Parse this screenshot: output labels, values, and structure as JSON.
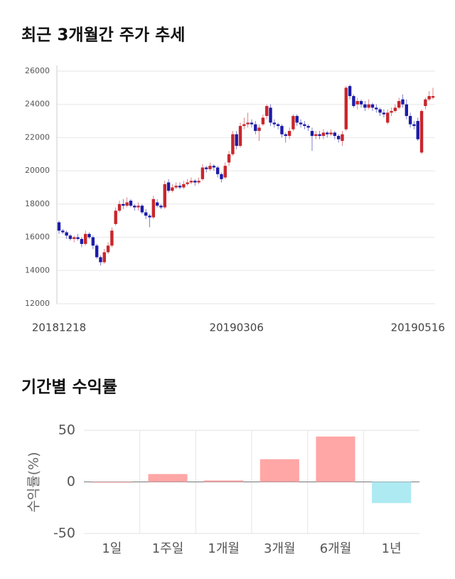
{
  "chart_data": [
    {
      "type": "candlestick",
      "title": "최근 3개월간 주가 추세",
      "categories": [
        "20181218",
        null,
        null,
        null,
        null,
        null,
        null,
        null,
        null,
        null,
        null,
        null,
        null,
        null,
        null,
        null,
        null,
        null,
        null,
        null,
        null,
        null,
        null,
        null,
        null,
        null,
        null,
        null,
        null,
        null,
        null,
        null,
        null,
        null,
        null,
        null,
        null,
        null,
        null,
        null,
        null,
        null,
        null,
        null,
        null,
        null,
        null,
        "20190306",
        null,
        null,
        null,
        null,
        null,
        null,
        null,
        null,
        null,
        null,
        null,
        null,
        null,
        null,
        null,
        null,
        null,
        null,
        null,
        null,
        null,
        null,
        null,
        null,
        null,
        null,
        null,
        null,
        null,
        null,
        null,
        null,
        null,
        null,
        null,
        null,
        null,
        null,
        null,
        null,
        null,
        null,
        null,
        null,
        null,
        null,
        null,
        "20190516",
        null,
        null,
        null,
        null
      ],
      "open": [
        16900,
        16400,
        16300,
        16100,
        15900,
        16000,
        15900,
        15600,
        16200,
        16000,
        15500,
        14800,
        14500,
        15100,
        15500,
        16800,
        17600,
        18000,
        17900,
        18200,
        17900,
        17800,
        17900,
        17500,
        17300,
        17200,
        18100,
        17900,
        17800,
        19300,
        18800,
        19000,
        19100,
        19000,
        19200,
        19300,
        19400,
        19300,
        19500,
        20200,
        20100,
        20300,
        20200,
        19800,
        19600,
        20500,
        21000,
        22200,
        21500,
        22700,
        22800,
        22900,
        22800,
        22400,
        22800,
        23300,
        23800,
        22900,
        22800,
        22700,
        22200,
        22100,
        22500,
        23300,
        22900,
        22800,
        22700,
        22400,
        22100,
        22200,
        22100,
        22300,
        22200,
        22300,
        22100,
        21800,
        22500,
        25100,
        24500,
        24000,
        24200,
        24000,
        23800,
        24000,
        23800,
        23700,
        23500,
        22900,
        23500,
        23600,
        23800,
        24300,
        24000,
        23300,
        22800,
        23000,
        21100,
        23900,
        24300,
        24400
      ],
      "high": [
        17000,
        16500,
        16400,
        16200,
        16100,
        16200,
        16000,
        16400,
        16300,
        16100,
        15600,
        14900,
        15300,
        15700,
        16600,
        17800,
        18200,
        18300,
        18400,
        18300,
        18000,
        18100,
        18000,
        17700,
        17400,
        18500,
        18300,
        18000,
        19400,
        19500,
        19200,
        19300,
        19300,
        19400,
        19500,
        19600,
        19500,
        19600,
        20400,
        20300,
        20500,
        20400,
        20300,
        19900,
        20500,
        21200,
        22400,
        22400,
        22900,
        23200,
        23500,
        23100,
        23000,
        22800,
        23400,
        24000,
        24000,
        23100,
        22900,
        22800,
        22300,
        22600,
        23400,
        23400,
        23100,
        23000,
        22800,
        22600,
        22400,
        22400,
        22500,
        22400,
        22500,
        22400,
        22200,
        22400,
        25100,
        25200,
        24600,
        24400,
        24300,
        24200,
        24300,
        24100,
        24000,
        23800,
        23700,
        23700,
        23800,
        24000,
        24400,
        24600,
        24300,
        23500,
        23000,
        23200,
        23700,
        24400,
        24800,
        25000
      ],
      "low": [
        16200,
        16200,
        15900,
        15800,
        15700,
        15800,
        15400,
        15500,
        15900,
        15300,
        14700,
        14300,
        14400,
        15000,
        15400,
        16700,
        17500,
        17700,
        17800,
        17800,
        17600,
        17600,
        17400,
        17100,
        16600,
        17100,
        17800,
        17700,
        17700,
        18700,
        18700,
        18900,
        18900,
        18900,
        19100,
        19200,
        19100,
        19200,
        19400,
        19900,
        20000,
        20000,
        19600,
        19300,
        19500,
        20300,
        20900,
        21300,
        21400,
        22500,
        22600,
        22600,
        22200,
        21800,
        22700,
        23100,
        22700,
        22600,
        22500,
        22000,
        21700,
        21900,
        22400,
        22700,
        22600,
        22500,
        22400,
        21200,
        21900,
        21900,
        21900,
        22000,
        22100,
        21900,
        21700,
        21500,
        22400,
        24300,
        23800,
        23700,
        23800,
        23600,
        23700,
        23600,
        23500,
        23300,
        23200,
        22800,
        23300,
        23500,
        23700,
        23800,
        23100,
        22600,
        22500,
        21800,
        21000,
        23700,
        24200,
        24300
      ],
      "close": [
        16400,
        16300,
        16100,
        15900,
        16000,
        15900,
        15600,
        16200,
        16000,
        15500,
        14800,
        14500,
        15100,
        15500,
        16400,
        17600,
        18000,
        17900,
        18100,
        17900,
        17800,
        17900,
        17500,
        17300,
        17200,
        18300,
        17900,
        17800,
        19200,
        18800,
        19000,
        19100,
        19000,
        19200,
        19300,
        19400,
        19300,
        19400,
        20200,
        20100,
        20300,
        20200,
        19800,
        19500,
        20300,
        21000,
        22200,
        21500,
        22700,
        22800,
        22900,
        22800,
        22400,
        22600,
        23200,
        23900,
        22900,
        22800,
        22700,
        22200,
        22100,
        22400,
        23300,
        22900,
        22800,
        22700,
        22600,
        22100,
        22200,
        22100,
        22300,
        22200,
        22300,
        22100,
        21900,
        22200,
        25000,
        24500,
        23900,
        24200,
        24000,
        23800,
        24000,
        23800,
        23700,
        23500,
        23400,
        23500,
        23600,
        23800,
        24200,
        24000,
        23300,
        22800,
        22700,
        21900,
        23600,
        24300,
        24500,
        24500
      ],
      "up_color": "#c8262b",
      "down_color": "#1c1ca8",
      "ylim": [
        12000,
        26000
      ],
      "yticks": [
        12000,
        14000,
        16000,
        18000,
        20000,
        22000,
        24000,
        26000
      ],
      "grid": true
    },
    {
      "type": "bar",
      "title": "기간별 수익률",
      "y_label": "수익률(%)",
      "categories": [
        "1일",
        "1주일",
        "1개월",
        "3개월",
        "6개월",
        "1년"
      ],
      "values": [
        0,
        7.6,
        1.4,
        22,
        44,
        -20.5
      ],
      "positive_color": "#ffa6a6",
      "negative_color": "#aeeaf2",
      "ylim": [
        -50,
        50
      ],
      "yticks": [
        -50,
        0,
        50
      ],
      "grid": true
    }
  ]
}
